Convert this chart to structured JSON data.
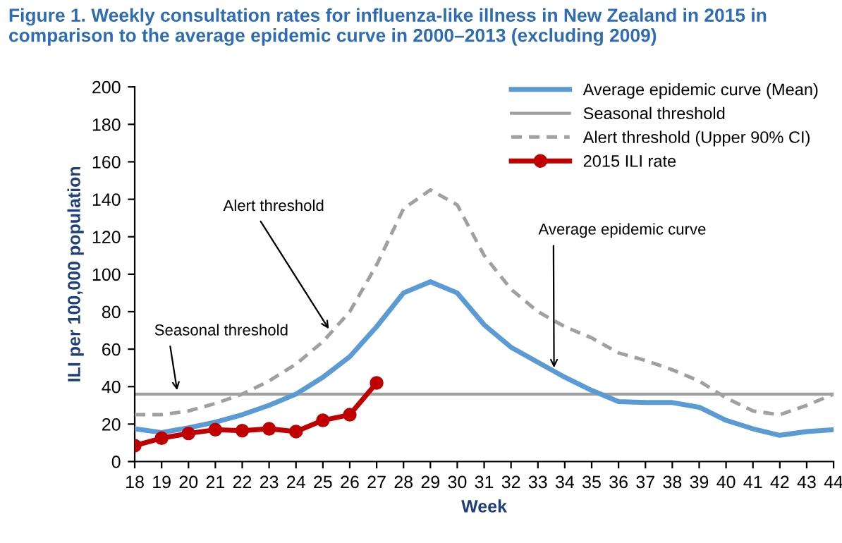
{
  "chart_data": {
    "type": "line",
    "title": "Figure 1. Weekly consultation rates for influenza-like illness in New Zealand in 2015 in comparison to the average epidemic curve in 2000–2013 (excluding 2009)",
    "xlabel": "Week",
    "ylabel": "ILI per 100,000 population",
    "x": [
      18,
      19,
      20,
      21,
      22,
      23,
      24,
      25,
      26,
      27,
      28,
      29,
      30,
      31,
      32,
      33,
      34,
      35,
      36,
      37,
      38,
      39,
      40,
      41,
      42,
      43,
      44
    ],
    "xlim": [
      18,
      44
    ],
    "xticks": [
      18,
      19,
      20,
      21,
      22,
      23,
      24,
      25,
      26,
      27,
      28,
      29,
      30,
      31,
      32,
      33,
      34,
      35,
      36,
      37,
      38,
      39,
      40,
      41,
      42,
      43,
      44
    ],
    "ylim": [
      0,
      200
    ],
    "yticks": [
      0,
      20,
      40,
      60,
      80,
      100,
      120,
      140,
      160,
      180,
      200
    ],
    "grid": false,
    "legend": "top right",
    "series": [
      {
        "name": "Average epidemic curve (Mean)",
        "color": "#5b9bd5",
        "line_style": "solid",
        "marker": "none",
        "values": [
          17.5,
          15.5,
          18,
          21,
          25,
          30,
          36,
          45,
          56,
          72,
          90,
          96,
          90,
          73,
          61,
          53,
          45,
          38,
          32,
          31.5,
          31.5,
          29,
          22,
          17.5,
          14,
          16,
          17
        ]
      },
      {
        "name": "Alert threshold (Upper 90% CI)",
        "color": "#a0a0a0",
        "line_style": "dashed",
        "marker": "none",
        "values": [
          25,
          25,
          27,
          31,
          36,
          43,
          52,
          64,
          80,
          105,
          135,
          145,
          137,
          110,
          92,
          80,
          72,
          66,
          58,
          54,
          49,
          43,
          34,
          27,
          25,
          30,
          36
        ]
      },
      {
        "name": "2015 ILI rate",
        "color": "#c00000",
        "line_style": "solid",
        "marker": "circle",
        "values": [
          8.5,
          12.5,
          15,
          17,
          16.5,
          17.5,
          16,
          22,
          25,
          42,
          null,
          null,
          null,
          null,
          null,
          null,
          null,
          null,
          null,
          null,
          null,
          null,
          null,
          null,
          null,
          null,
          null
        ]
      }
    ],
    "ref_lines": [
      {
        "axis": "y",
        "value": 36,
        "label": "Seasonal threshold",
        "color": "#a0a0a0",
        "line_style": "solid"
      }
    ],
    "annotations": [
      {
        "text": "Seasonal threshold",
        "x": 19.6,
        "y": 36
      },
      {
        "text": "Alert threshold",
        "x": 25.3,
        "y": 69
      },
      {
        "text": "Average epidemic curve",
        "x": 33.6,
        "y": 48
      }
    ]
  }
}
